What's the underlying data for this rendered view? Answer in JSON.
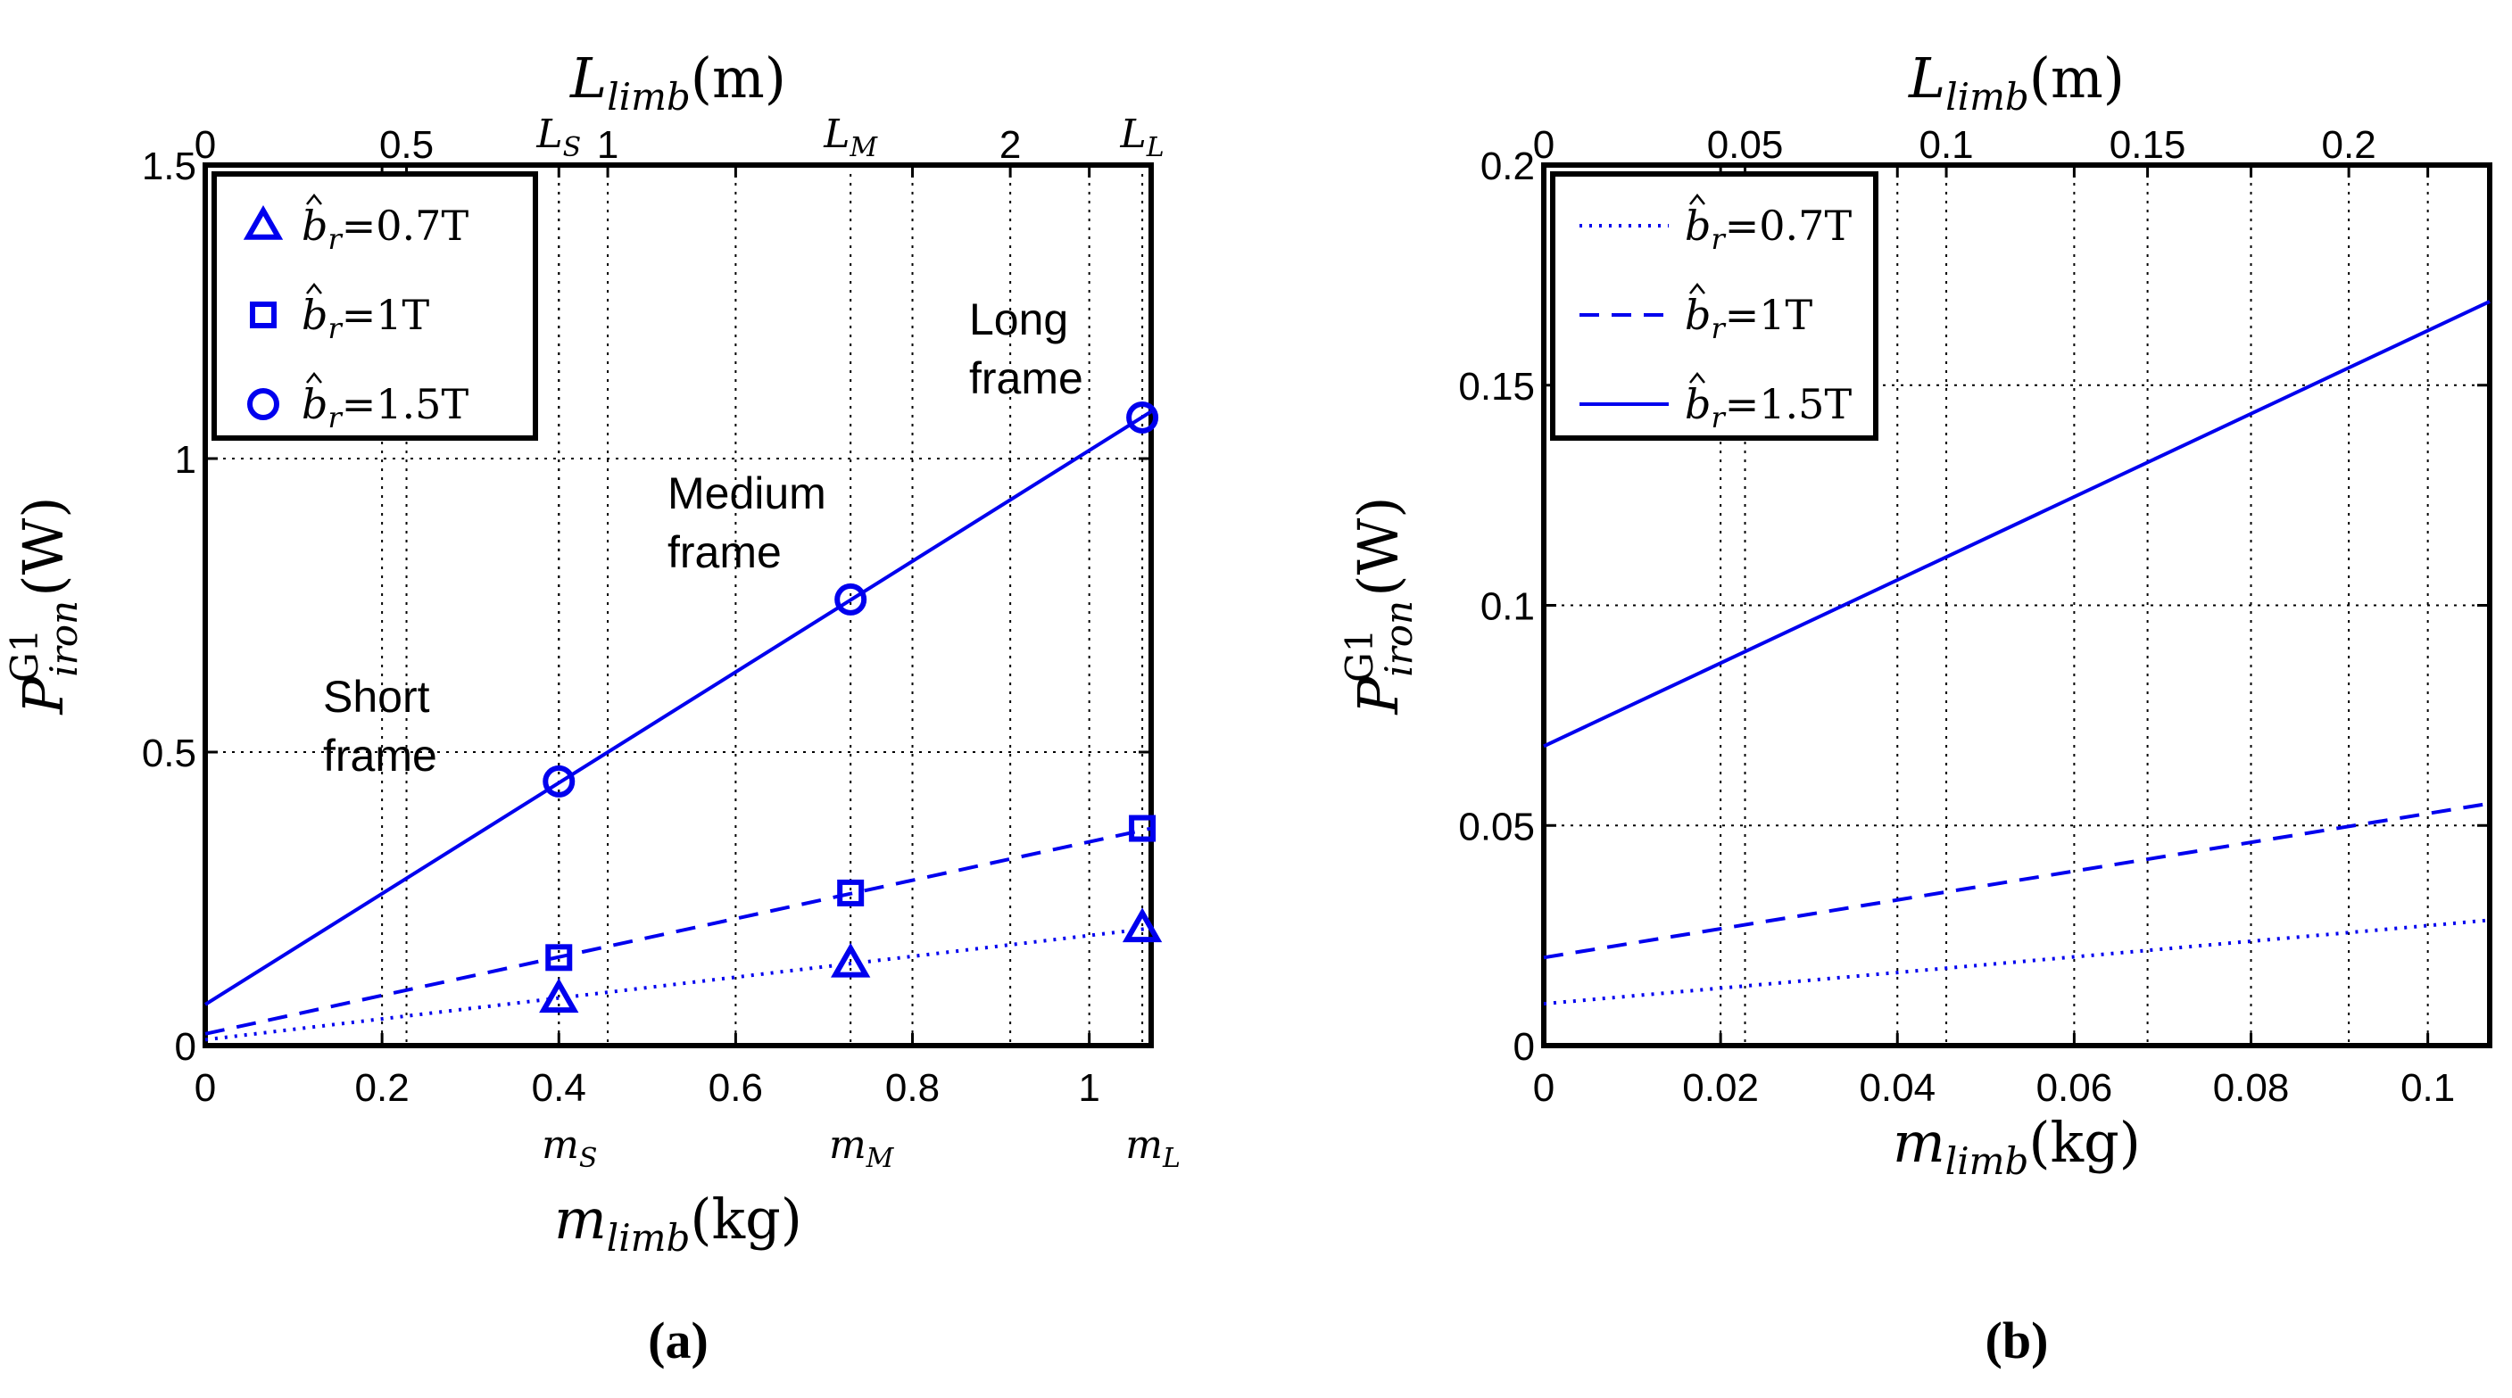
{
  "chart_data": [
    {
      "type": "line",
      "panel": "(a)",
      "xlabel_var": "m",
      "xlabel_sub": "limb",
      "xlabel_unit": "(kg)",
      "ylabel_var": "P",
      "ylabel_sup": "G1",
      "ylabel_sub": "iron",
      "ylabel_unit": "(W)",
      "top_label_var": "L",
      "top_label_sub": "limb",
      "top_label_unit": "(m)",
      "xlim": [
        0,
        1.07
      ],
      "ylim": [
        0,
        1.5
      ],
      "top_xlim": [
        0,
        2.35
      ],
      "xticks": [
        0,
        0.2,
        0.4,
        0.6,
        0.8,
        1
      ],
      "xtick_labels": [
        "0",
        "0.2",
        "0.4",
        "0.6",
        "0.8",
        "1"
      ],
      "yticks": [
        0,
        0.5,
        1,
        1.5
      ],
      "ytick_labels": [
        "0",
        "0.5",
        "1",
        "1.5"
      ],
      "top_ticks": [
        0,
        0.5,
        1,
        2
      ],
      "top_tick_labels": [
        "0",
        "0.5",
        "1",
        "2"
      ],
      "extra_grid_x": [
        0.4,
        0.73,
        1.06
      ],
      "top_marker_labels": [
        {
          "x": 0.4,
          "main": "L",
          "sub": "S"
        },
        {
          "x": 0.73,
          "main": "L",
          "sub": "M"
        },
        {
          "x": 1.06,
          "main": "L",
          "sub": "L"
        }
      ],
      "bottom_marker_labels": [
        {
          "x": 0.4,
          "main": "m",
          "sub": "S"
        },
        {
          "x": 0.73,
          "main": "m",
          "sub": "M"
        },
        {
          "x": 1.06,
          "main": "m",
          "sub": "L"
        }
      ],
      "series": [
        {
          "name": "b_r=0.7T",
          "legend_pre": "b",
          "legend_sub": "r",
          "legend_post": "=0.7T",
          "style": "dotted",
          "marker": "triangle",
          "x": [
            0,
            1.07
          ],
          "y": [
            0.01,
            0.2
          ],
          "marker_x": [
            0.4,
            0.73,
            1.06
          ],
          "marker_y": [
            0.08,
            0.14,
            0.2
          ]
        },
        {
          "name": "b_r=1T",
          "legend_pre": "b",
          "legend_sub": "r",
          "legend_post": "=1T",
          "style": "dashed",
          "marker": "square",
          "x": [
            0,
            1.07
          ],
          "y": [
            0.02,
            0.37
          ],
          "marker_x": [
            0.4,
            0.73,
            1.06
          ],
          "marker_y": [
            0.15,
            0.26,
            0.37
          ]
        },
        {
          "name": "b_r=1.5T",
          "legend_pre": "b",
          "legend_sub": "r",
          "legend_post": "=1.5T",
          "style": "solid",
          "marker": "circle",
          "x": [
            0,
            1.07
          ],
          "y": [
            0.07,
            1.08
          ],
          "marker_x": [
            0.4,
            0.73,
            1.06
          ],
          "marker_y": [
            0.45,
            0.76,
            1.07
          ]
        }
      ],
      "annotations": [
        {
          "lines": [
            "Short",
            "frame"
          ]
        },
        {
          "lines": [
            "Medium",
            "frame"
          ]
        },
        {
          "lines": [
            "Long",
            "frame"
          ]
        }
      ]
    },
    {
      "type": "line",
      "panel": "(b)",
      "xlabel_var": "m",
      "xlabel_sub": "limb",
      "xlabel_unit": "(kg)",
      "ylabel_var": "P",
      "ylabel_sup": "G1",
      "ylabel_sub": "iron",
      "ylabel_unit": "(W)",
      "top_label_var": "L",
      "top_label_sub": "limb",
      "top_label_unit": "(m)",
      "xlim": [
        0,
        0.107
      ],
      "ylim": [
        0,
        0.2
      ],
      "top_xlim": [
        0,
        0.235
      ],
      "xticks": [
        0,
        0.02,
        0.04,
        0.06,
        0.08,
        0.1
      ],
      "xtick_labels": [
        "0",
        "0.02",
        "0.04",
        "0.06",
        "0.08",
        "0.1"
      ],
      "yticks": [
        0,
        0.05,
        0.1,
        0.15,
        0.2
      ],
      "ytick_labels": [
        "0",
        "0.05",
        "0.1",
        "0.15",
        "0.2"
      ],
      "top_ticks": [
        0,
        0.05,
        0.1,
        0.15,
        0.2
      ],
      "top_tick_labels": [
        "0",
        "0.05",
        "0.1",
        "0.15",
        "0.2"
      ],
      "series": [
        {
          "name": "b_r=0.7T",
          "legend_pre": "b",
          "legend_sub": "r",
          "legend_post": "=0.7T",
          "style": "dotted",
          "x": [
            0,
            0.107
          ],
          "y": [
            0.0095,
            0.0285
          ]
        },
        {
          "name": "b_r=1T",
          "legend_pre": "b",
          "legend_sub": "r",
          "legend_post": "=1T",
          "style": "dashed",
          "x": [
            0,
            0.107
          ],
          "y": [
            0.02,
            0.055
          ]
        },
        {
          "name": "b_r=1.5T",
          "legend_pre": "b",
          "legend_sub": "r",
          "legend_post": "=1.5T",
          "style": "solid",
          "x": [
            0,
            0.107
          ],
          "y": [
            0.068,
            0.169
          ]
        }
      ]
    }
  ],
  "colors": {
    "series": "#0000ee",
    "axis": "#000000"
  }
}
